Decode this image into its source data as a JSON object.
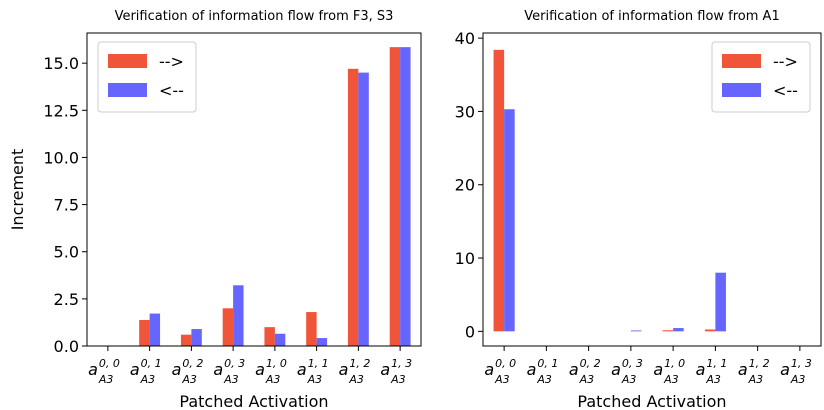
{
  "colors": {
    "forward": "#f05439",
    "backward": "#6666ff",
    "axis": "#000000",
    "legend_frame": "#cccccc"
  },
  "chart_data": [
    {
      "type": "bar",
      "title": "Verification of information flow from F3, S3",
      "xlabel": "Patched Activation",
      "ylabel": "Increment",
      "ylim": [
        0,
        16.6
      ],
      "yticks": [
        "0.0",
        "2.5",
        "5.0",
        "7.5",
        "10.0",
        "12.5",
        "15.0"
      ],
      "categories": [
        {
          "base": "a",
          "sup": "0, 0",
          "sub": "A3"
        },
        {
          "base": "a",
          "sup": "0, 1",
          "sub": "A3"
        },
        {
          "base": "a",
          "sup": "0, 2",
          "sub": "A3"
        },
        {
          "base": "a",
          "sup": "0, 3",
          "sub": "A3"
        },
        {
          "base": "a",
          "sup": "1, 0",
          "sub": "A3"
        },
        {
          "base": "a",
          "sup": "1, 1",
          "sub": "A3"
        },
        {
          "base": "a",
          "sup": "1, 2",
          "sub": "A3"
        },
        {
          "base": "a",
          "sup": "1, 3",
          "sub": "A3"
        }
      ],
      "series": [
        {
          "name": "-->",
          "values": [
            0,
            1.38,
            0.6,
            2.0,
            1.0,
            1.8,
            14.7,
            15.85
          ]
        },
        {
          "name": "<--",
          "values": [
            0,
            1.72,
            0.9,
            3.22,
            0.65,
            0.42,
            14.5,
            15.85
          ]
        }
      ],
      "legend_position": "top-left",
      "grid": false
    },
    {
      "type": "bar",
      "title": "Verification of information flow from A1",
      "xlabel": "Patched Activation",
      "ylabel": "",
      "ylim": [
        -2,
        40.7
      ],
      "yticks": [
        "0",
        "10",
        "20",
        "30",
        "40"
      ],
      "categories": [
        {
          "base": "a",
          "sup": "0, 0",
          "sub": "A3"
        },
        {
          "base": "a",
          "sup": "0, 1",
          "sub": "A3"
        },
        {
          "base": "a",
          "sup": "0, 2",
          "sub": "A3"
        },
        {
          "base": "a",
          "sup": "0, 3",
          "sub": "A3"
        },
        {
          "base": "a",
          "sup": "1, 0",
          "sub": "A3"
        },
        {
          "base": "a",
          "sup": "1, 1",
          "sub": "A3"
        },
        {
          "base": "a",
          "sup": "1, 2",
          "sub": "A3"
        },
        {
          "base": "a",
          "sup": "1, 3",
          "sub": "A3"
        }
      ],
      "series": [
        {
          "name": "-->",
          "values": [
            38.4,
            0,
            0,
            0,
            0.15,
            0.25,
            0,
            0
          ]
        },
        {
          "name": "<--",
          "values": [
            30.3,
            0,
            0,
            0.12,
            0.45,
            8.0,
            0,
            0
          ]
        }
      ],
      "legend_position": "top-right",
      "grid": false
    }
  ]
}
